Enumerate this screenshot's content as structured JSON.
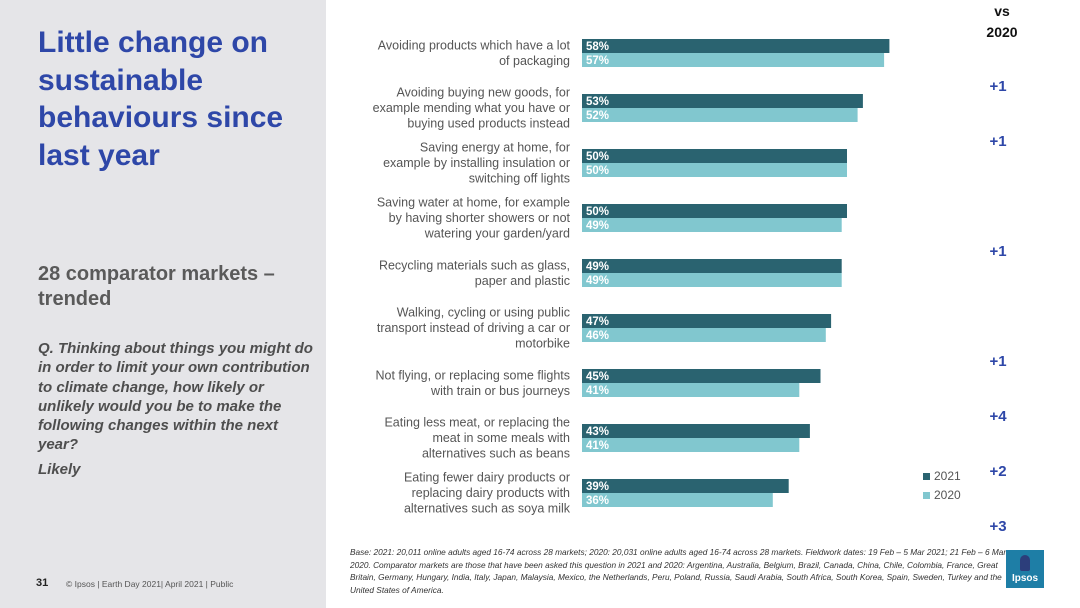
{
  "sidebar": {
    "title": "Little change on sustainable behaviours since last year",
    "subtitle": "28 comparator markets – trended",
    "question": "Q. Thinking about things you might do in order to limit your own contribution to climate change, how likely or unlikely would you be to make the following changes within the next year?",
    "likely": "Likely"
  },
  "footer": {
    "page_number": "31",
    "text": "© Ipsos | Earth Day 2021| April 2021 | Public",
    "base_note": "Base: 2021: 20,011 online adults aged 16-74 across 28 markets; 2020: 20,031 online adults aged 16-74 across 28 markets. Fieldwork dates: 19 Feb – 5 Mar 2021; 21 Feb – 6 Mar 2020. Comparator markets are those that have been asked this question in 2021 and 2020: Argentina, Australia, Belgium, Brazil, Canada, China, Chile, Colombia, France, Great Britain, Germany, Hungary, India, Italy, Japan, Malaysia, Mexico, the Netherlands, Peru, Poland, Russia, Saudi Arabia, South Africa, South Korea, Spain, Sweden, Turkey and the United States of America."
  },
  "logo": {
    "text": "Ipsos"
  },
  "vs_header": {
    "line1": "vs",
    "line2": "2020"
  },
  "colors": {
    "series_2021": "#2a6370",
    "series_2020": "#81c7cf",
    "change": "#2e47a8",
    "title": "#2e47a8"
  },
  "chart_data": {
    "type": "bar",
    "orientation": "horizontal",
    "categories": [
      [
        "Avoiding products which have a lot",
        "of packaging"
      ],
      [
        "Avoiding buying new goods, for",
        "example mending what you have or",
        "buying used products instead"
      ],
      [
        "Saving energy at home, for",
        "example by installing insulation or",
        "switching off lights"
      ],
      [
        "Saving water at home, for example",
        "by having shorter showers or not",
        "watering your garden/yard"
      ],
      [
        "Recycling materials such as glass,",
        "paper and plastic"
      ],
      [
        "Walking, cycling or using public",
        "transport instead of driving a car or",
        "motorbike"
      ],
      [
        "Not flying, or replacing some flights",
        "with train or bus journeys"
      ],
      [
        "Eating less meat, or replacing the",
        "meat in some meals with",
        "alternatives such as beans"
      ],
      [
        "Eating fewer dairy products or",
        "replacing dairy products with",
        "alternatives such as soya milk"
      ]
    ],
    "series": [
      {
        "name": "2021",
        "values": [
          58,
          53,
          50,
          50,
          49,
          47,
          45,
          43,
          39
        ],
        "labels": [
          "58%",
          "53%",
          "50%",
          "50%",
          "49%",
          "47%",
          "45%",
          "43%",
          "39%"
        ]
      },
      {
        "name": "2020",
        "values": [
          57,
          52,
          50,
          49,
          49,
          46,
          41,
          41,
          36
        ],
        "labels": [
          "57%",
          "52%",
          "50%",
          "49%",
          "49%",
          "46%",
          "41%",
          "41%",
          "36%"
        ]
      }
    ],
    "change_vs_2020": [
      "+1",
      "+1",
      "",
      "+1",
      "",
      "+1",
      "+4",
      "+2",
      "+3"
    ],
    "xlim": [
      0,
      100
    ],
    "legend": {
      "entries": [
        "2021",
        "2020"
      ],
      "position": "bottom-right"
    }
  }
}
